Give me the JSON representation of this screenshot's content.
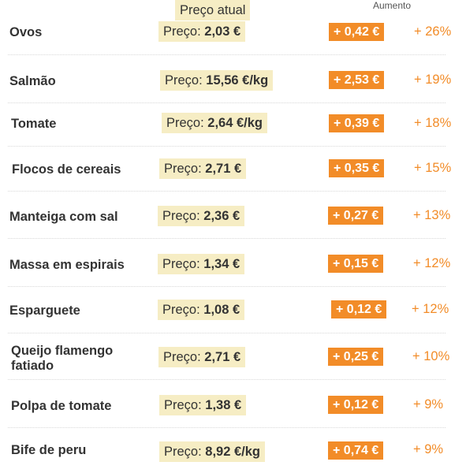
{
  "headers": {
    "price": "Preço atual",
    "increase": "Aumento"
  },
  "price_prefix": "Preço:",
  "colors": {
    "price_bg": "#f6edc4",
    "badge_bg": "#f28c28",
    "pct_text": "#f28c28"
  },
  "rows": [
    {
      "name": "Ovos",
      "price": "2,03 €",
      "increase": "+ 0,42 €",
      "percent": "+ 26%"
    },
    {
      "name": "Salmão",
      "price": "15,56 €/kg",
      "increase": "+ 2,53 €",
      "percent": "+ 19%"
    },
    {
      "name": "Tomate",
      "price": "2,64 €/kg",
      "increase": "+ 0,39 €",
      "percent": "+ 18%"
    },
    {
      "name": "Flocos de cereais",
      "price": "2,71 €",
      "increase": "+ 0,35 €",
      "percent": "+ 15%"
    },
    {
      "name": "Manteiga com sal",
      "price": "2,36 €",
      "increase": "+ 0,27 €",
      "percent": "+ 13%"
    },
    {
      "name": "Massa em espirais",
      "price": "1,34 €",
      "increase": "+ 0,15 €",
      "percent": "+ 12%"
    },
    {
      "name": "Esparguete",
      "price": "1,08 €",
      "increase": "+ 0,12 €",
      "percent": "+ 12%"
    },
    {
      "name": "Queijo flamengo fatiado",
      "price": "2,71 €",
      "increase": "+ 0,25 €",
      "percent": "+ 10%"
    },
    {
      "name": "Polpa de tomate",
      "price": "1,38 €",
      "increase": "+ 0,12 €",
      "percent": "+ 9%"
    },
    {
      "name": "Bife de peru",
      "price": "8,92 €/kg",
      "increase": "+ 0,74 €",
      "percent": "+ 9%"
    }
  ]
}
